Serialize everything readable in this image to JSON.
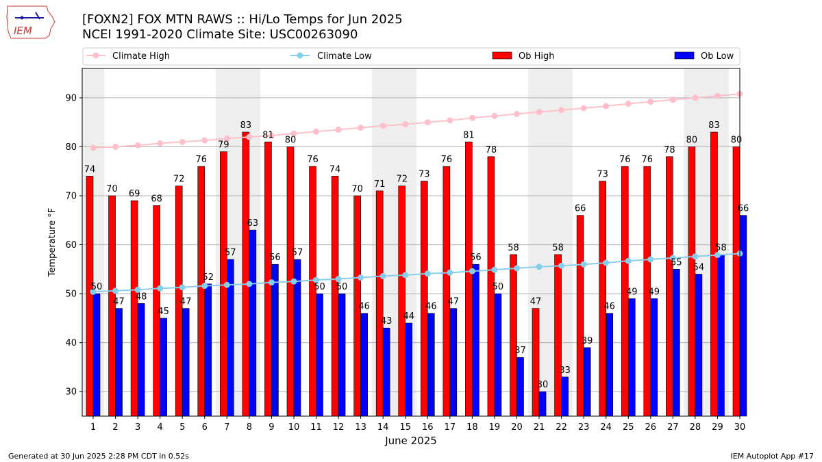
{
  "header": {
    "logo_text": "IEM",
    "title_line1": "[FOXN2] FOX MTN RAWS :: Hi/Lo Temps for Jun 2025",
    "title_line2": "NCEI 1991-2020 Climate Site: USC00263090"
  },
  "footer": {
    "left": "Generated at 30 Jun 2025 2:28 PM CDT in 0.52s",
    "right": "IEM Autoplot App #17"
  },
  "colors": {
    "climate_high": "#ffc0cb",
    "climate_low": "#87ceeb",
    "ob_high": "#ff0000",
    "ob_low": "#0000ff",
    "weekend_band": "#eeeeee"
  },
  "chart_data": {
    "type": "bar",
    "xlabel": "June 2025",
    "ylabel": "Temperature °F",
    "ylim": [
      25,
      96
    ],
    "yticks": [
      30,
      40,
      50,
      60,
      70,
      80,
      90
    ],
    "grid": true,
    "legend": "top",
    "weekend_days": [
      1,
      7,
      8,
      14,
      15,
      21,
      22,
      28,
      29
    ],
    "categories": [
      "1",
      "2",
      "3",
      "4",
      "5",
      "6",
      "7",
      "8",
      "9",
      "10",
      "11",
      "12",
      "13",
      "14",
      "15",
      "16",
      "17",
      "18",
      "19",
      "20",
      "21",
      "22",
      "23",
      "24",
      "25",
      "26",
      "27",
      "28",
      "29",
      "30"
    ],
    "series": [
      {
        "name": "Ob High",
        "kind": "bar",
        "values": [
          74,
          70,
          69,
          68,
          72,
          76,
          79,
          83,
          81,
          80,
          76,
          74,
          70,
          71,
          72,
          73,
          76,
          81,
          78,
          58,
          47,
          58,
          66,
          73,
          76,
          76,
          78,
          80,
          83,
          80
        ]
      },
      {
        "name": "Ob Low",
        "kind": "bar",
        "values": [
          50,
          47,
          48,
          45,
          47,
          52,
          57,
          63,
          56,
          57,
          50,
          50,
          46,
          43,
          44,
          46,
          47,
          56,
          50,
          37,
          30,
          33,
          39,
          46,
          49,
          49,
          55,
          54,
          58,
          66
        ]
      },
      {
        "name": "Climate High",
        "kind": "line",
        "values": [
          79.8,
          80.0,
          80.3,
          80.7,
          81.0,
          81.3,
          81.7,
          82.0,
          82.3,
          82.7,
          83.1,
          83.5,
          83.9,
          84.3,
          84.6,
          85.0,
          85.4,
          85.9,
          86.3,
          86.7,
          87.1,
          87.5,
          87.9,
          88.3,
          88.8,
          89.2,
          89.6,
          90.0,
          90.4,
          90.8
        ]
      },
      {
        "name": "Climate Low",
        "kind": "line",
        "values": [
          50.4,
          50.6,
          50.8,
          51.1,
          51.3,
          51.6,
          51.8,
          52.0,
          52.3,
          52.5,
          52.8,
          53.0,
          53.3,
          53.6,
          53.8,
          54.1,
          54.3,
          54.6,
          54.9,
          55.2,
          55.5,
          55.7,
          56.0,
          56.3,
          56.7,
          57.0,
          57.3,
          57.6,
          57.9,
          58.2
        ]
      }
    ]
  }
}
